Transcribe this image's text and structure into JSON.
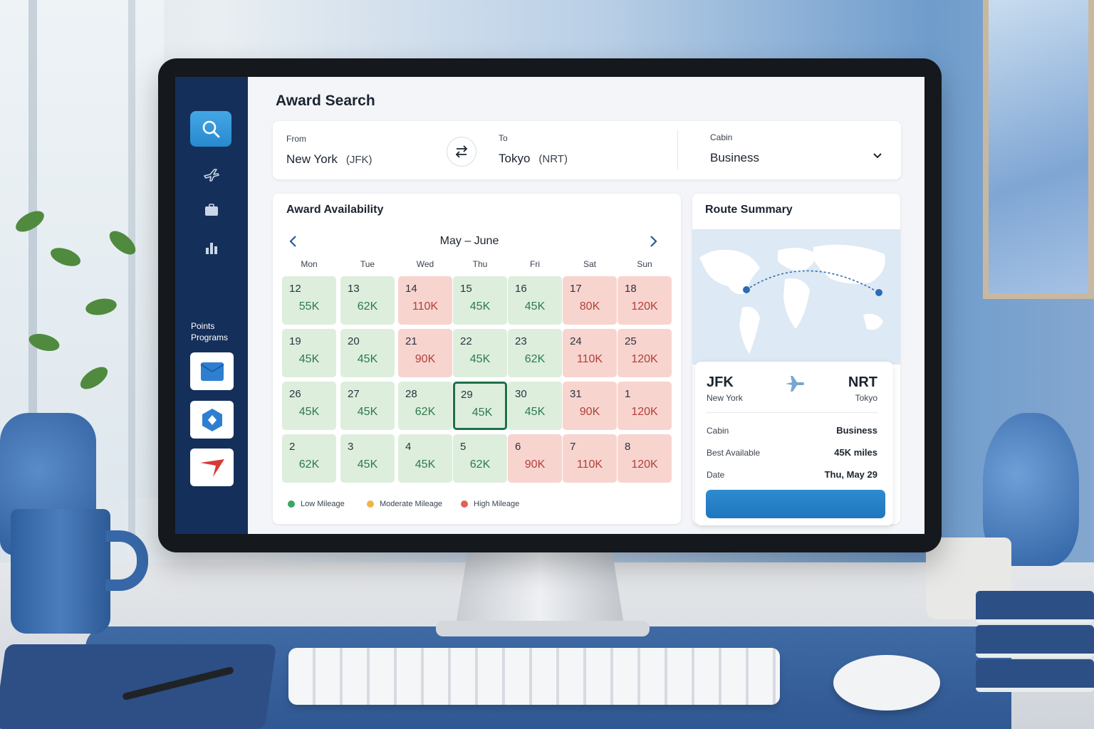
{
  "app": {
    "title": "Award Search"
  },
  "sidebar": {
    "points_label": "Points Programs",
    "programs": [
      {
        "icon": "envelope-program-icon",
        "color": "#2f7fd0"
      },
      {
        "icon": "hexagon-program-icon",
        "color": "#2f7fd0"
      },
      {
        "icon": "swoosh-program-icon",
        "color": "#d93a35"
      }
    ]
  },
  "search": {
    "from_label": "From",
    "from_city": "New York",
    "from_code": "(JFK)",
    "to_label": "To",
    "to_city": "Tokyo",
    "to_code": "(NRT)",
    "cabin_label": "Cabin",
    "cabin_value": "Business"
  },
  "availability": {
    "title": "Award Availability",
    "month": "May – June",
    "weekdays": [
      "Mon",
      "Tue",
      "Wed",
      "Thu",
      "Fri",
      "Sat",
      "Sun"
    ],
    "weeks": [
      [
        {
          "d": "12",
          "v": "55K",
          "t": "low"
        },
        {
          "d": "13",
          "v": "62K",
          "t": "low"
        },
        {
          "d": "14",
          "v": "110K",
          "t": "high"
        },
        {
          "d": "15",
          "v": "45K",
          "t": "low"
        },
        {
          "d": "16",
          "v": "45K",
          "t": "low"
        },
        {
          "d": "17",
          "v": "80K",
          "t": "high"
        },
        {
          "d": "18",
          "v": "120K",
          "t": "high"
        }
      ],
      [
        {
          "d": "19",
          "v": "45K",
          "t": "low"
        },
        {
          "d": "20",
          "v": "45K",
          "t": "low"
        },
        {
          "d": "21",
          "v": "90K",
          "t": "high"
        },
        {
          "d": "22",
          "v": "45K",
          "t": "low"
        },
        {
          "d": "23",
          "v": "62K",
          "t": "low"
        },
        {
          "d": "24",
          "v": "110K",
          "t": "high"
        },
        {
          "d": "25",
          "v": "120K",
          "t": "high"
        }
      ],
      [
        {
          "d": "26",
          "v": "45K",
          "t": "low"
        },
        {
          "d": "27",
          "v": "45K",
          "t": "low"
        },
        {
          "d": "28",
          "v": "62K",
          "t": "low"
        },
        {
          "d": "29",
          "v": "45K",
          "t": "low",
          "sel": true
        },
        {
          "d": "30",
          "v": "45K",
          "t": "low"
        },
        {
          "d": "31",
          "v": "90K",
          "t": "high"
        },
        {
          "d": "1",
          "v": "120K",
          "t": "high"
        }
      ],
      [
        {
          "d": "2",
          "v": "62K",
          "t": "low"
        },
        {
          "d": "3",
          "v": "45K",
          "t": "low"
        },
        {
          "d": "4",
          "v": "45K",
          "t": "low"
        },
        {
          "d": "5",
          "v": "62K",
          "t": "low"
        },
        {
          "d": "6",
          "v": "90K",
          "t": "high"
        },
        {
          "d": "7",
          "v": "110K",
          "t": "high"
        },
        {
          "d": "8",
          "v": "120K",
          "t": "high"
        }
      ]
    ],
    "legend": [
      {
        "label": "Low Mileage",
        "color": "#3aa565"
      },
      {
        "label": "Moderate Mileage",
        "color": "#f0b548"
      },
      {
        "label": "High Mileage",
        "color": "#e2605a"
      }
    ]
  },
  "route": {
    "title": "Route Summary",
    "origin_code": "JFK",
    "origin_city": "New York",
    "dest_code": "NRT",
    "dest_city": "Tokyo",
    "rows": [
      {
        "label": "Cabin",
        "value": "Business"
      },
      {
        "label": "Best Available",
        "value": "45K miles"
      },
      {
        "label": "Date",
        "value": "Thu, May 29"
      }
    ]
  },
  "colors": {
    "sidebar": "#14305a",
    "accent": "#2889cf",
    "low_bg": "#ddeedd",
    "high_bg": "#f8d4cf",
    "selected_border": "#1f6f47"
  }
}
